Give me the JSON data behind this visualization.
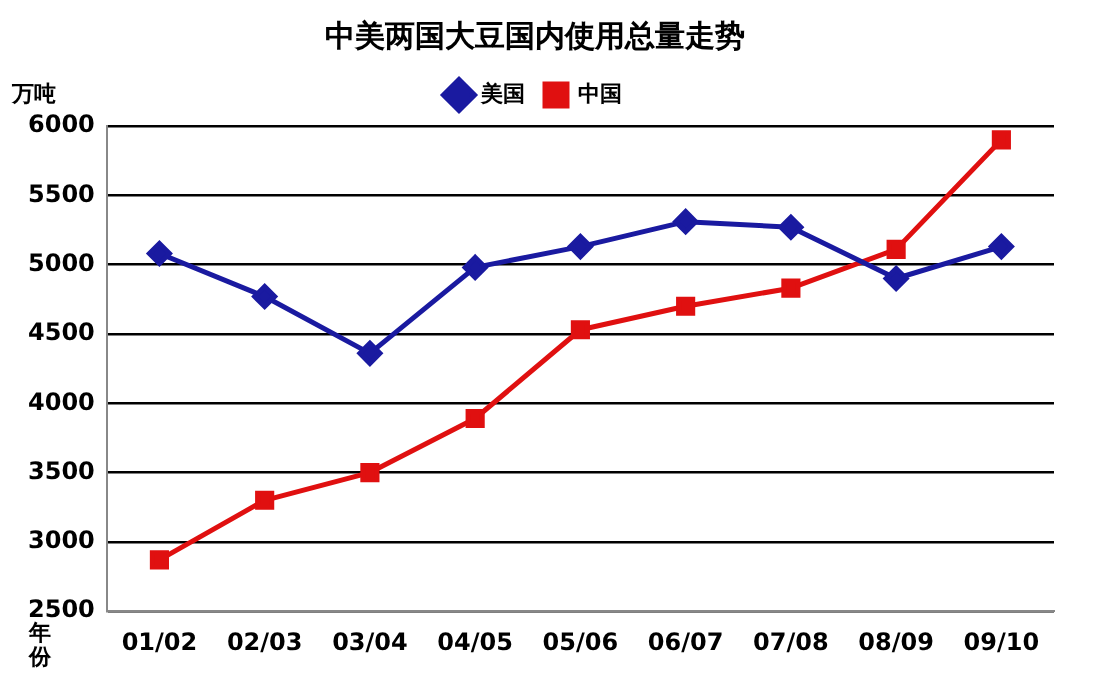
{
  "chart_data": {
    "type": "line",
    "title": "中美两国大豆国内使用总量走势",
    "ylabel": "万吨",
    "xlabel": "年份",
    "categories": [
      "01/02",
      "02/03",
      "03/04",
      "04/05",
      "05/06",
      "06/07",
      "07/08",
      "08/09",
      "09/10"
    ],
    "series": [
      {
        "name": "美国",
        "color": "#1a1aa0",
        "marker": "diamond",
        "values": [
          5080,
          4770,
          4360,
          4980,
          5130,
          5310,
          5270,
          4900,
          5130
        ]
      },
      {
        "name": "中国",
        "color": "#e01010",
        "marker": "square",
        "values": [
          2870,
          3300,
          3500,
          3890,
          4530,
          4700,
          4830,
          5110,
          5900
        ]
      }
    ],
    "ylim": [
      2500,
      6000
    ],
    "yticks": [
      2500,
      3000,
      3500,
      4000,
      4500,
      5000,
      5500,
      6000
    ],
    "grid": "y",
    "legend": "top",
    "line_style": "solid"
  }
}
